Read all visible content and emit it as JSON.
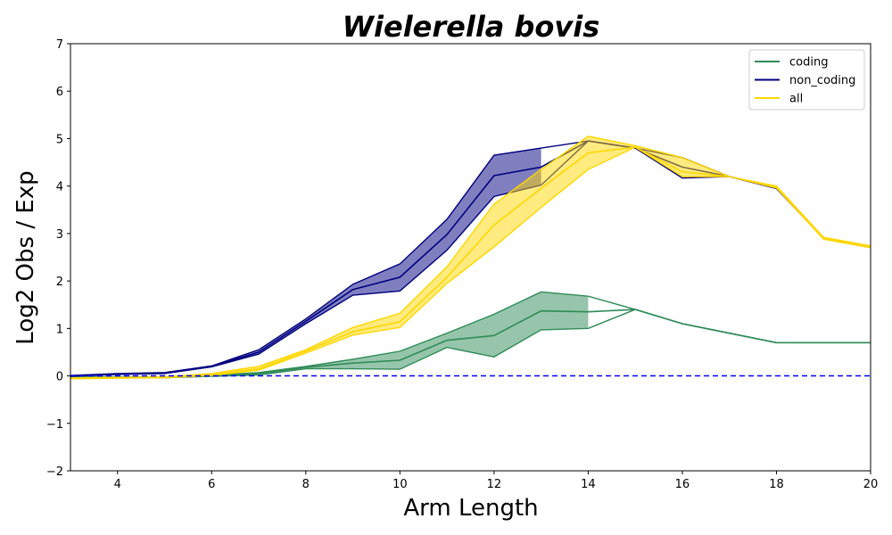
{
  "chart_data": {
    "type": "line",
    "title": "Wielerella bovis",
    "xlabel": "Arm Length",
    "ylabel": "Log2 Obs / Exp",
    "xlim": [
      3,
      20
    ],
    "ylim": [
      -2,
      7
    ],
    "xticks": [
      "4",
      "6",
      "8",
      "10",
      "12",
      "14",
      "16",
      "18",
      "20"
    ],
    "yticks": [
      "−2",
      "−1",
      "0",
      "1",
      "2",
      "3",
      "4",
      "5",
      "6",
      "7"
    ],
    "legend_position": "top-right",
    "reference_line": {
      "y": 0,
      "style": "dashed",
      "color": "#0000ff"
    },
    "series": [
      {
        "name": "coding",
        "color": "#2e8b57",
        "band_extent": [
          3,
          14
        ],
        "x": [
          3,
          4,
          5,
          6,
          7,
          8,
          9,
          10,
          11,
          12,
          13,
          14,
          15,
          16,
          17,
          18,
          19,
          20
        ],
        "values": [
          -0.03,
          -0.03,
          -0.03,
          0.0,
          0.05,
          0.18,
          0.27,
          0.33,
          0.75,
          0.85,
          1.37,
          1.35,
          1.4,
          1.1,
          0.9,
          0.7,
          0.7,
          0.7
        ],
        "upper": [
          -0.02,
          -0.02,
          -0.02,
          0.01,
          0.07,
          0.2,
          0.35,
          0.52,
          0.9,
          1.3,
          1.77,
          1.68,
          1.4,
          1.1,
          0.9,
          0.7,
          0.7,
          0.7
        ],
        "lower": [
          -0.04,
          -0.04,
          -0.04,
          -0.01,
          0.02,
          0.15,
          0.15,
          0.14,
          0.6,
          0.4,
          0.97,
          1.0,
          1.4,
          1.1,
          0.9,
          0.7,
          0.7,
          0.7
        ]
      },
      {
        "name": "non_coding",
        "color": "#000080",
        "band_extent": [
          3,
          13
        ],
        "x": [
          3,
          4,
          5,
          6,
          7,
          8,
          9,
          10,
          11,
          12,
          13,
          14,
          15,
          16,
          17,
          18,
          19,
          20
        ],
        "values": [
          0.0,
          0.04,
          0.06,
          0.2,
          0.5,
          1.15,
          1.82,
          2.08,
          2.98,
          4.22,
          4.4,
          4.95,
          4.8,
          4.4,
          4.2,
          3.95,
          2.9,
          2.72
        ],
        "upper": [
          0.01,
          0.05,
          0.07,
          0.21,
          0.55,
          1.2,
          1.93,
          2.36,
          3.3,
          4.65,
          4.8,
          4.95,
          4.8,
          4.6,
          4.2,
          3.97,
          2.9,
          2.72
        ],
        "lower": [
          -0.01,
          0.03,
          0.05,
          0.19,
          0.46,
          1.1,
          1.7,
          1.79,
          2.65,
          3.78,
          4.02,
          4.95,
          4.8,
          4.17,
          4.2,
          3.95,
          2.9,
          2.72
        ]
      },
      {
        "name": "all",
        "color": "#ffd700",
        "band_extent": [
          3,
          17
        ],
        "x": [
          3,
          4,
          5,
          6,
          7,
          8,
          9,
          10,
          11,
          12,
          13,
          14,
          15,
          16,
          17,
          18,
          19,
          20
        ],
        "values": [
          -0.05,
          -0.04,
          -0.03,
          0.03,
          0.15,
          0.52,
          0.93,
          1.14,
          2.08,
          3.18,
          3.95,
          4.7,
          4.82,
          4.3,
          4.2,
          3.98,
          2.9,
          2.72
        ],
        "upper": [
          -0.04,
          -0.03,
          -0.02,
          0.05,
          0.2,
          0.55,
          1.02,
          1.32,
          2.3,
          3.62,
          4.35,
          5.05,
          4.85,
          4.6,
          4.2,
          4.0,
          2.92,
          2.74
        ],
        "lower": [
          -0.06,
          -0.05,
          -0.04,
          0.01,
          0.12,
          0.48,
          0.86,
          1.02,
          1.95,
          2.72,
          3.55,
          4.35,
          4.82,
          4.2,
          4.2,
          3.96,
          2.88,
          2.7
        ]
      }
    ]
  }
}
